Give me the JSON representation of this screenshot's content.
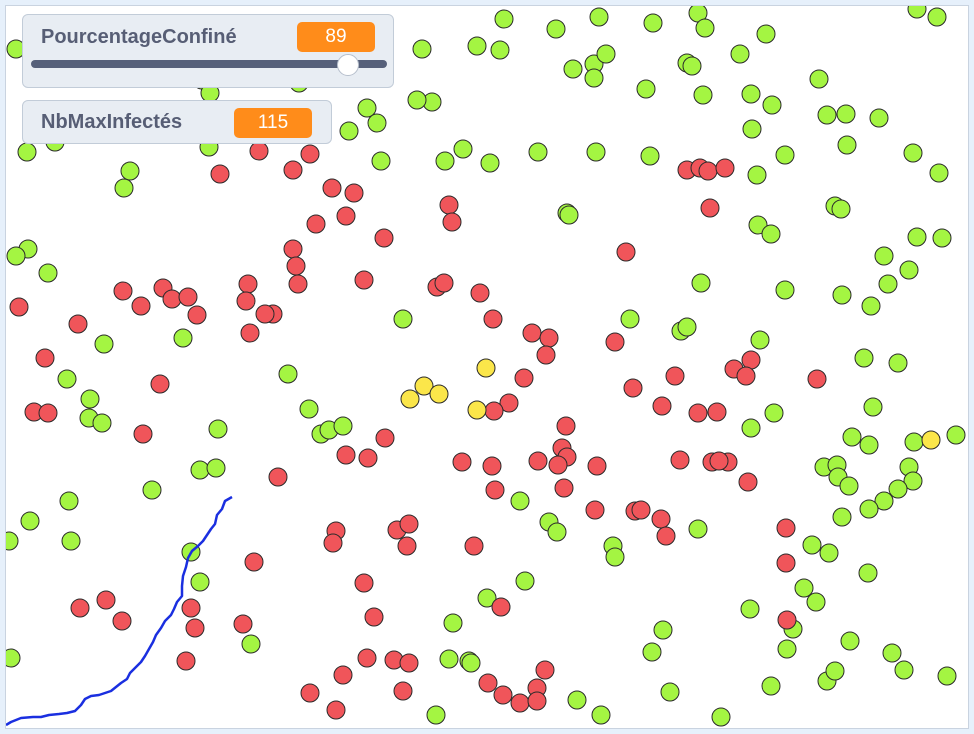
{
  "monitors": {
    "pourcentage_confine": {
      "label": "PourcentageConfiné",
      "value": "89",
      "slider_fraction": 0.89
    },
    "nb_max_infectes": {
      "label": "NbMaxInfectés",
      "value": "115"
    }
  },
  "colors": {
    "healthy": "#a4f542",
    "infected": "#f0555a",
    "recovered": "#fbe64a",
    "dot_outline": "#2b2b2b",
    "graph_line": "#1a2fe0",
    "monitor_value_bg": "#ff8c1a"
  },
  "icons": [
    "slider-knob"
  ]
}
